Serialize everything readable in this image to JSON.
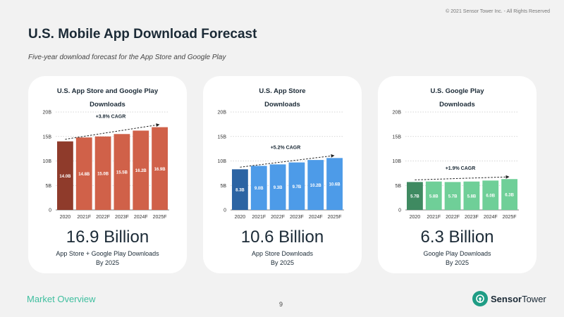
{
  "copyright": "© 2021 Sensor Tower Inc. - All Rights Reserved",
  "title": "U.S. Mobile App Download Forecast",
  "subtitle": "Five-year download forecast for the App Store and Google Play",
  "footer": {
    "section": "Market Overview",
    "page": "9",
    "brand_bold": "Sensor",
    "brand_rest": "Tower"
  },
  "colors": {
    "accent": "#3fbf9f",
    "brand": "#1f9d85"
  },
  "cards": [
    {
      "title_line1": "U.S. App Store and Google Play",
      "title_line2": "Downloads",
      "headline": "16.9 Billion",
      "caption_line1": "App Store + Google Play Downloads",
      "caption_line2": "By 2025"
    },
    {
      "title_line1": "U.S. App Store",
      "title_line2": "Downloads",
      "headline": "10.6 Billion",
      "caption_line1": "App Store Downloads",
      "caption_line2": "By 2025"
    },
    {
      "title_line1": "U.S. Google Play",
      "title_line2": "Downloads",
      "headline": "6.3 Billion",
      "caption_line1": "Google Play Downloads",
      "caption_line2": "By 2025"
    }
  ],
  "chart_data": [
    {
      "type": "bar",
      "title": "U.S. App Store and Google Play Downloads",
      "categories": [
        "2020",
        "2021F",
        "2022F",
        "2023F",
        "2024F",
        "2025F"
      ],
      "values": [
        14.0,
        14.8,
        15.0,
        15.5,
        16.2,
        16.9
      ],
      "value_labels": [
        "14.0B",
        "14.8B",
        "15.0B",
        "15.5B",
        "16.2B",
        "16.9B"
      ],
      "ylim": [
        0,
        20
      ],
      "yticks": [
        0,
        5,
        10,
        15,
        20
      ],
      "ytick_labels": [
        "0",
        "5B",
        "10B",
        "15B",
        "20B"
      ],
      "annotation": "+3.8% CAGR",
      "colors": {
        "first": "#8f3b2b",
        "rest": "#d06149"
      }
    },
    {
      "type": "bar",
      "title": "U.S. App Store Downloads",
      "categories": [
        "2020",
        "2021F",
        "2022F",
        "2023F",
        "2024F",
        "2025F"
      ],
      "values": [
        8.3,
        9.0,
        9.3,
        9.7,
        10.2,
        10.6
      ],
      "value_labels": [
        "8.3B",
        "9.0B",
        "9.3B",
        "9.7B",
        "10.2B",
        "10.6B"
      ],
      "ylim": [
        0,
        20
      ],
      "yticks": [
        0,
        5,
        10,
        15,
        20
      ],
      "ytick_labels": [
        "0",
        "5B",
        "10B",
        "15B",
        "20B"
      ],
      "annotation": "+5.2% CAGR",
      "colors": {
        "first": "#2c64a3",
        "rest": "#4d9be8"
      }
    },
    {
      "type": "bar",
      "title": "U.S. Google Play Downloads",
      "categories": [
        "2020",
        "2021F",
        "2022F",
        "2023F",
        "2024F",
        "2025F"
      ],
      "values": [
        5.7,
        5.8,
        5.7,
        5.8,
        6.0,
        6.3
      ],
      "value_labels": [
        "5.7B",
        "5.8B",
        "5.7B",
        "5.8B",
        "6.0B",
        "6.3B"
      ],
      "ylim": [
        0,
        20
      ],
      "yticks": [
        0,
        5,
        10,
        15,
        20
      ],
      "ytick_labels": [
        "0",
        "5B",
        "10B",
        "15B",
        "20B"
      ],
      "annotation": "+1.9% CAGR",
      "colors": {
        "first": "#3f8a61",
        "rest": "#6fcf98"
      }
    }
  ]
}
